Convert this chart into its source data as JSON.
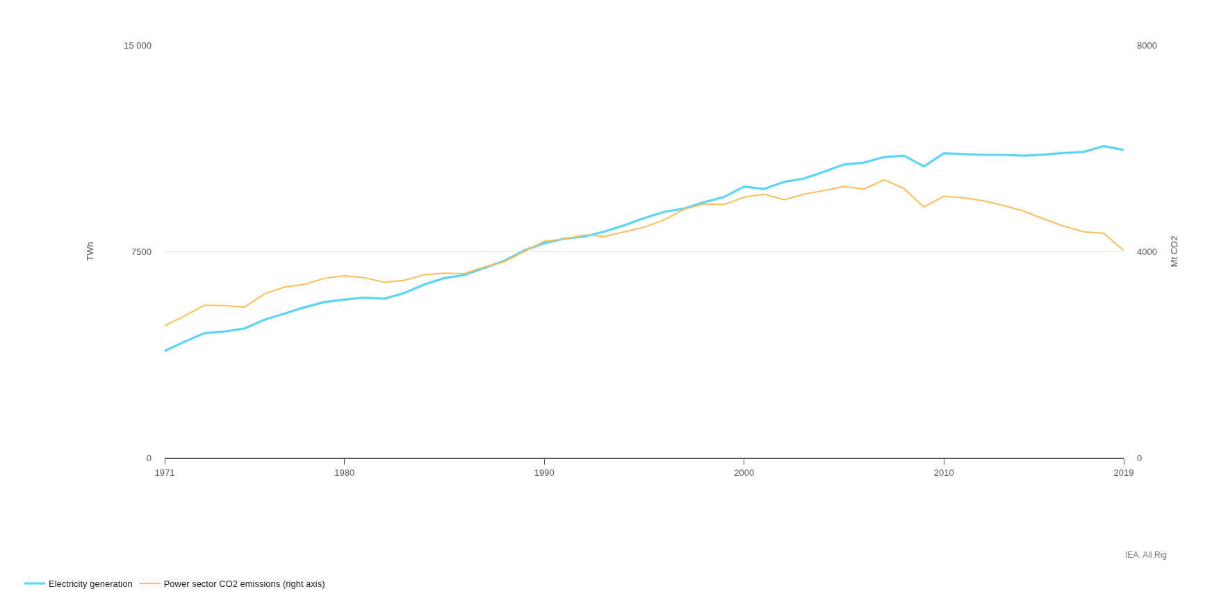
{
  "chart_data": {
    "type": "line",
    "x": [
      1971,
      1972,
      1973,
      1974,
      1975,
      1976,
      1977,
      1978,
      1979,
      1980,
      1981,
      1982,
      1983,
      1984,
      1985,
      1986,
      1987,
      1988,
      1989,
      1990,
      1991,
      1992,
      1993,
      1994,
      1995,
      1996,
      1997,
      1998,
      1999,
      2000,
      2001,
      2002,
      2003,
      2004,
      2005,
      2006,
      2007,
      2008,
      2009,
      2010,
      2011,
      2012,
      2013,
      2014,
      2015,
      2016,
      2017,
      2018,
      2019
    ],
    "series": [
      {
        "name": "Electricity generation",
        "color": "#5cd4fa",
        "values": [
          3880,
          4220,
          4530,
          4590,
          4700,
          5020,
          5240,
          5470,
          5660,
          5750,
          5820,
          5780,
          5990,
          6300,
          6530,
          6640,
          6900,
          7160,
          7540,
          7800,
          7960,
          8040,
          8220,
          8450,
          8710,
          8940,
          9060,
          9290,
          9480,
          9860,
          9770,
          10030,
          10150,
          10400,
          10660,
          10730,
          10930,
          10980,
          10590,
          11070,
          11040,
          11010,
          11010,
          10980,
          11020,
          11080,
          11120,
          11330,
          11190
        ]
      },
      {
        "name": "Power sector CO2 emissions (right axis)",
        "color": "#fbbd5c",
        "axis": "y2",
        "values": [
          2560,
          2750,
          2960,
          2950,
          2920,
          3180,
          3310,
          3360,
          3480,
          3530,
          3490,
          3400,
          3440,
          3550,
          3580,
          3570,
          3700,
          3800,
          4000,
          4200,
          4240,
          4320,
          4290,
          4380,
          4470,
          4610,
          4820,
          4920,
          4910,
          5050,
          5110,
          5000,
          5110,
          5180,
          5260,
          5210,
          5390,
          5220,
          4860,
          5070,
          5040,
          4980,
          4890,
          4780,
          4630,
          4490,
          4380,
          4350,
          4020
        ]
      }
    ],
    "xlim": [
      1971,
      2019
    ],
    "xticks": [
      1971,
      1980,
      1990,
      2000,
      2010,
      2019
    ],
    "ylim": [
      0,
      15000
    ],
    "yticks": [
      0,
      {
        "value": 7500,
        "label": "7500"
      },
      {
        "value": 15000,
        "label": "15 000"
      }
    ],
    "y2lim": [
      0,
      8000
    ],
    "y2ticks": [
      0,
      4000,
      8000
    ],
    "ylabel": "TWh",
    "y2label": "Mt CO2",
    "grid": "y",
    "legend": "bottom left",
    "marker": "none",
    "line_style": "solid",
    "annotations": [
      "IEA. All Rig"
    ]
  }
}
